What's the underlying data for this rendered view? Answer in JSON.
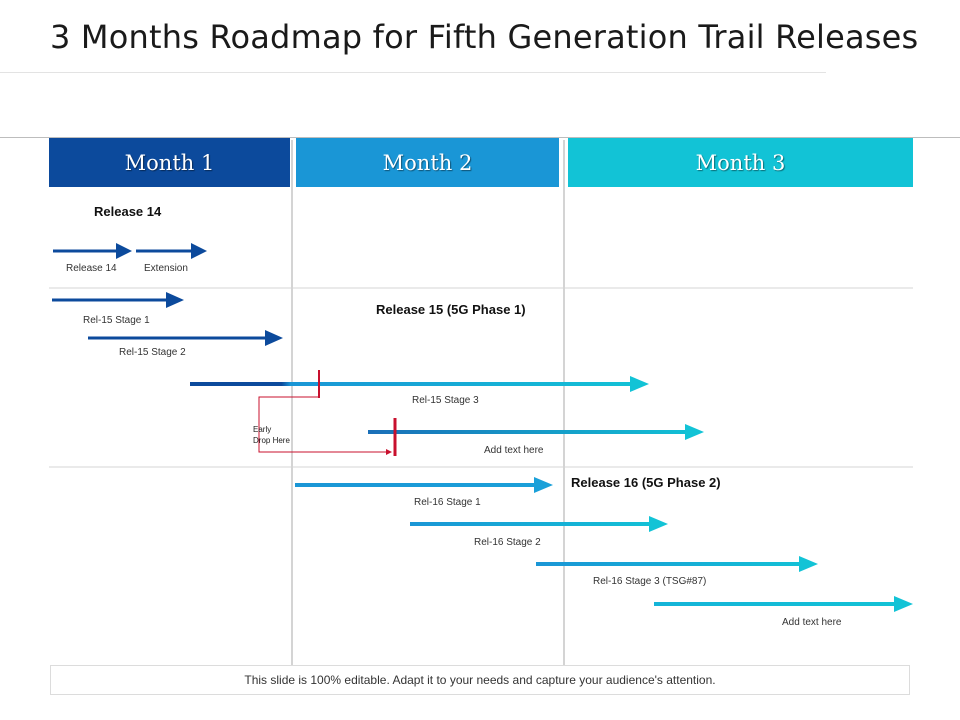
{
  "title": "3 Months Roadmap for Fifth Generation Trail Releases",
  "months": [
    {
      "label": "Month 1",
      "color": "#0c4a9c"
    },
    {
      "label": "Month 2",
      "color": "#1a96d6"
    },
    {
      "label": "Month 3",
      "color": "#12c3d6"
    }
  ],
  "sections": {
    "release14": {
      "heading": "Release 14",
      "labels": [
        "Release 14",
        "Extension"
      ]
    },
    "release15": {
      "heading": "Release 15 (5G Phase 1)",
      "labels": [
        "Rel-15 Stage 1",
        "Rel-15 Stage 2",
        "Rel-15 Stage 3",
        "Add text here"
      ],
      "note": [
        "Early",
        "Drop Here"
      ]
    },
    "release16": {
      "heading": "Release 16 (5G Phase 2)",
      "labels": [
        "Rel-16 Stage 1",
        "Rel-16 Stage 2",
        "Rel-16 Stage 3 (TSG#87)",
        "Add text here"
      ]
    }
  },
  "colors": {
    "dark_blue": "#0c4a9c",
    "mid_blue": "#1a96d6",
    "cyan": "#12c3d6",
    "marker_red": "#c8102e"
  },
  "footer": "This slide is 100% editable. Adapt it to your needs and capture your audience's attention."
}
